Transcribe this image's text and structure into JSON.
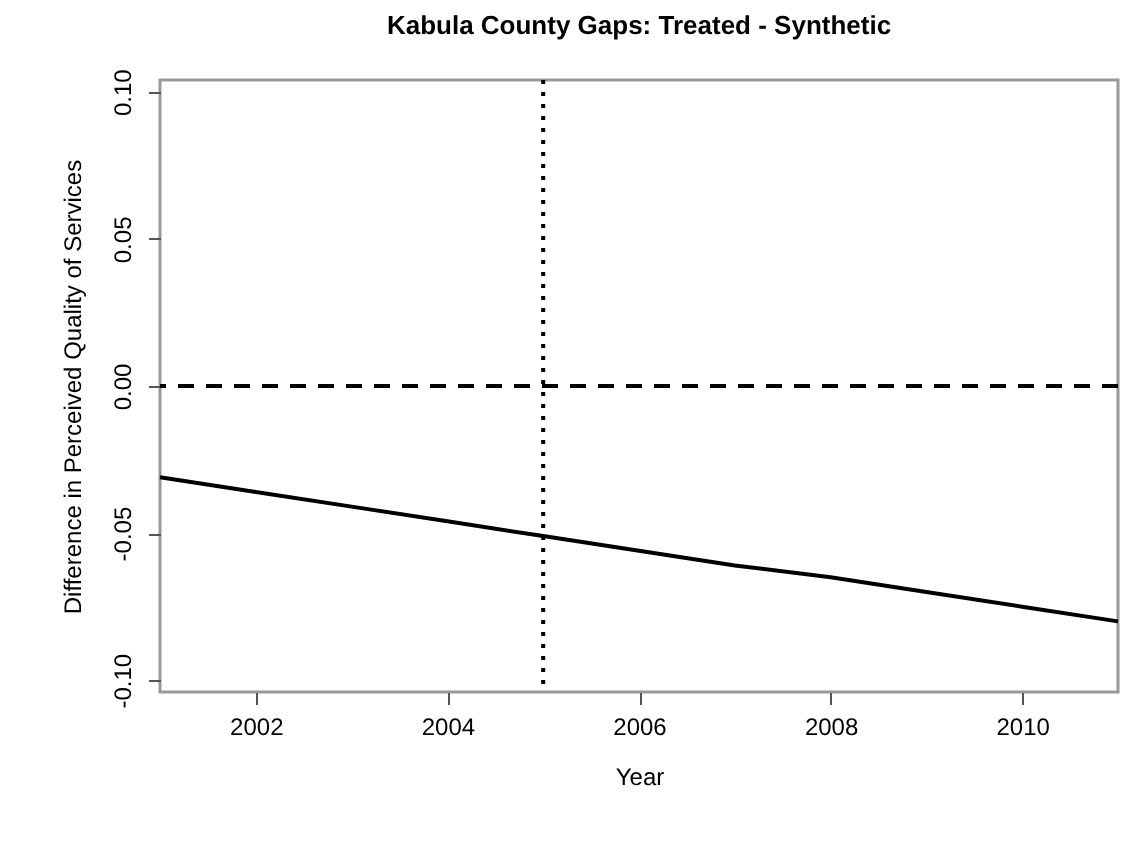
{
  "chart_data": {
    "type": "line",
    "title": "Kabula County Gaps: Treated - Synthetic",
    "xlabel": "Year",
    "ylabel": "Difference in Perceived Quality of Services",
    "x": [
      2001,
      2002,
      2003,
      2004,
      2005,
      2006,
      2007,
      2008,
      2009,
      2010,
      2011
    ],
    "series": [
      {
        "color": "#000000",
        "values": [
          -0.031,
          -0.036,
          -0.041,
          -0.046,
          -0.051,
          -0.056,
          -0.061,
          -0.065,
          -0.07,
          -0.075,
          -0.08
        ]
      }
    ],
    "xlim": [
      2001,
      2011
    ],
    "xticks": [
      2002,
      2004,
      2006,
      2008,
      2010
    ],
    "ylim": [
      -0.104,
      0.104
    ],
    "yticks": [
      {
        "value": -0.1,
        "label": "-0.10"
      },
      {
        "value": -0.05,
        "label": "-0.05"
      },
      {
        "value": 0,
        "label": "0.00"
      },
      {
        "value": 0.05,
        "label": "0.05"
      },
      {
        "value": 0.1,
        "label": "0.10"
      }
    ],
    "ref_lines": [
      {
        "axis": "y",
        "value": 0,
        "line_style": "dashed",
        "color": "#000000"
      },
      {
        "axis": "x",
        "value": 2005,
        "line_style": "dotted",
        "color": "#000000"
      }
    ],
    "grid": false,
    "marker": "none",
    "line_style": "solid"
  }
}
